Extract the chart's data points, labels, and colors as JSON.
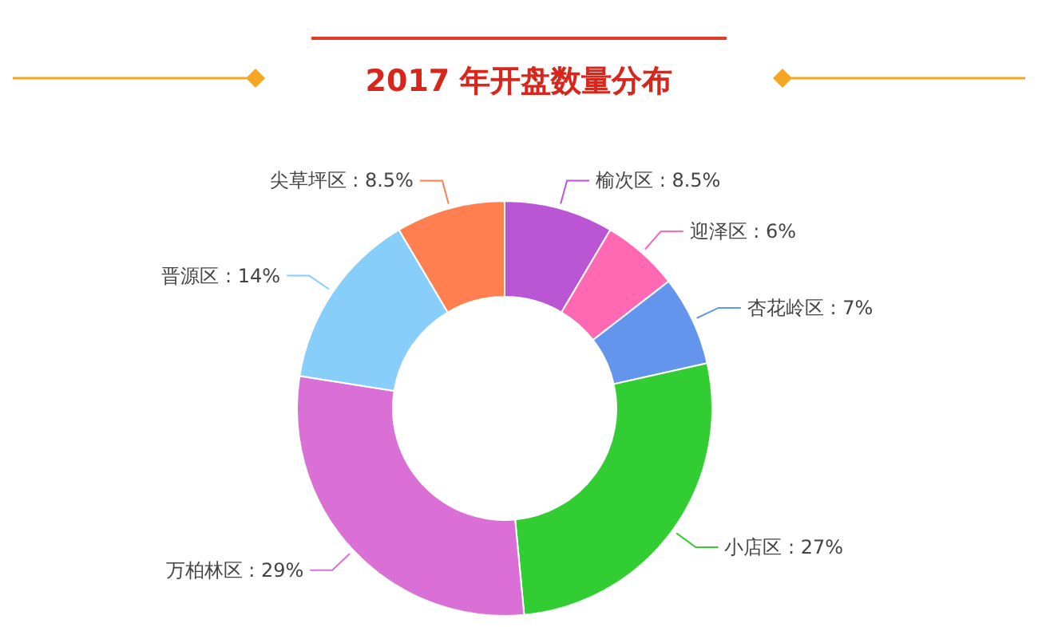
{
  "chart_data": {
    "type": "donut",
    "title": "2017 年开盘数量分布",
    "categories": [
      "榆次区",
      "迎泽区",
      "杏花岭区",
      "小店区",
      "万柏林区",
      "晋源区",
      "尖草坪区"
    ],
    "values": [
      8.5,
      6,
      7,
      27,
      29,
      14,
      8.5
    ],
    "value_labels": [
      "8.5%",
      "6%",
      "7%",
      "27%",
      "29%",
      "14%",
      "8.5%"
    ],
    "colors": [
      "#ba55d3",
      "#ff69b4",
      "#6495ed",
      "#32cd32",
      "#da70d6",
      "#87cefa",
      "#ff7f50"
    ]
  }
}
